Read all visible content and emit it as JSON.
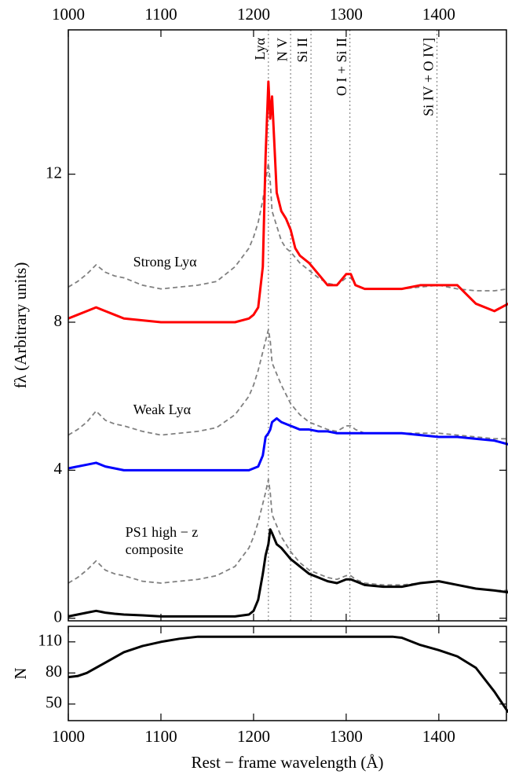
{
  "chart_data": [
    {
      "type": "line",
      "ylabel": "fλ (Arbitrary units)",
      "xlim": [
        1000,
        1473
      ],
      "ylim": [
        -0.07,
        15.9
      ],
      "xticks": [
        1000,
        1100,
        1200,
        1300,
        1400
      ],
      "yticks": [
        0,
        4,
        8,
        12
      ],
      "xtick_position": "top",
      "x": [
        1000,
        1010,
        1020,
        1030,
        1040,
        1050,
        1060,
        1080,
        1100,
        1120,
        1140,
        1160,
        1180,
        1195,
        1200,
        1205,
        1210,
        1213,
        1216,
        1218,
        1220,
        1225,
        1230,
        1235,
        1240,
        1245,
        1250,
        1260,
        1270,
        1280,
        1290,
        1300,
        1305,
        1310,
        1320,
        1340,
        1360,
        1380,
        1400,
        1420,
        1440,
        1460,
        1475
      ],
      "series": [
        {
          "color": "#808080",
          "dash": true,
          "values": [
            8.95,
            9.1,
            9.3,
            9.55,
            9.35,
            9.25,
            9.2,
            9.0,
            8.9,
            8.95,
            9.0,
            9.1,
            9.5,
            10.0,
            10.3,
            10.7,
            11.3,
            11.8,
            12.3,
            11.8,
            11.0,
            10.6,
            10.2,
            10.0,
            9.9,
            9.75,
            9.6,
            9.4,
            9.2,
            9.05,
            9.0,
            9.2,
            9.2,
            9.0,
            8.9,
            8.9,
            8.9,
            8.95,
            9.0,
            8.9,
            8.85,
            8.85,
            8.9
          ]
        },
        {
          "name": "Strong Lyα",
          "color": "#ff0000",
          "values": [
            8.1,
            8.2,
            8.3,
            8.4,
            8.3,
            8.2,
            8.1,
            8.05,
            8.0,
            8.0,
            8.0,
            8.0,
            8.0,
            8.1,
            8.2,
            8.4,
            9.5,
            12.5,
            14.5,
            13.5,
            14.1,
            11.5,
            11.0,
            10.8,
            10.5,
            10.0,
            9.8,
            9.6,
            9.3,
            9.0,
            9.0,
            9.3,
            9.3,
            9.0,
            8.9,
            8.9,
            8.9,
            9.0,
            9.0,
            9.0,
            8.5,
            8.3,
            8.5
          ]
        },
        {
          "color": "#808080",
          "dash": true,
          "values": [
            4.95,
            5.1,
            5.3,
            5.6,
            5.35,
            5.25,
            5.2,
            5.05,
            4.95,
            5.0,
            5.05,
            5.15,
            5.5,
            6.0,
            6.3,
            6.7,
            7.2,
            7.5,
            7.8,
            7.5,
            6.9,
            6.6,
            6.3,
            6.05,
            5.8,
            5.65,
            5.5,
            5.3,
            5.2,
            5.1,
            5.05,
            5.2,
            5.2,
            5.1,
            5.0,
            5.0,
            5.0,
            5.0,
            5.0,
            4.95,
            4.9,
            4.85,
            4.85
          ]
        },
        {
          "name": "Weak Lyα",
          "color": "#0000ff",
          "values": [
            4.05,
            4.1,
            4.15,
            4.2,
            4.1,
            4.05,
            4.0,
            4.0,
            4.0,
            4.0,
            4.0,
            4.0,
            4.0,
            4.0,
            4.05,
            4.1,
            4.4,
            4.9,
            5.0,
            5.1,
            5.3,
            5.4,
            5.3,
            5.25,
            5.2,
            5.15,
            5.1,
            5.1,
            5.05,
            5.05,
            5.0,
            5.0,
            5.0,
            5.0,
            5.0,
            5.0,
            5.0,
            4.95,
            4.9,
            4.9,
            4.85,
            4.8,
            4.7
          ]
        },
        {
          "color": "#808080",
          "dash": true,
          "values": [
            0.95,
            1.1,
            1.3,
            1.55,
            1.3,
            1.2,
            1.15,
            1.0,
            0.95,
            1.0,
            1.05,
            1.15,
            1.4,
            1.9,
            2.2,
            2.6,
            3.1,
            3.4,
            3.75,
            3.4,
            2.8,
            2.5,
            2.2,
            2.0,
            1.8,
            1.65,
            1.5,
            1.3,
            1.2,
            1.1,
            1.05,
            1.15,
            1.15,
            1.05,
            0.95,
            0.9,
            0.9,
            0.95,
            1.0,
            0.9,
            0.8,
            0.75,
            0.75
          ]
        },
        {
          "name": "PS1 high − z composite",
          "color": "#000000",
          "values": [
            0.05,
            0.1,
            0.15,
            0.2,
            0.15,
            0.12,
            0.1,
            0.08,
            0.05,
            0.05,
            0.05,
            0.05,
            0.05,
            0.1,
            0.2,
            0.5,
            1.2,
            1.7,
            2.0,
            2.4,
            2.3,
            2.0,
            1.9,
            1.75,
            1.6,
            1.5,
            1.4,
            1.2,
            1.1,
            1.0,
            0.95,
            1.05,
            1.05,
            1.0,
            0.9,
            0.85,
            0.85,
            0.95,
            1.0,
            0.9,
            0.8,
            0.75,
            0.7
          ]
        }
      ],
      "lines": [
        {
          "label": "Lyα",
          "x": 1216
        },
        {
          "label": "N V",
          "x": 1240
        },
        {
          "label": "Si II",
          "x": 1262
        },
        {
          "label": "O I + Si II",
          "x": 1304
        },
        {
          "label": "Si IV + O IV]",
          "x": 1398
        }
      ]
    },
    {
      "type": "line",
      "ylabel": "N",
      "xlabel": "Rest − frame wavelength (Å)",
      "xlim": [
        1000,
        1473
      ],
      "ylim": [
        34,
        125
      ],
      "xticks": [
        1000,
        1100,
        1200,
        1300,
        1400
      ],
      "yticks": [
        50,
        80,
        110
      ],
      "xtick_position": "bottom",
      "x": [
        1000,
        1010,
        1020,
        1040,
        1060,
        1080,
        1100,
        1120,
        1140,
        1200,
        1300,
        1350,
        1360,
        1380,
        1400,
        1420,
        1440,
        1460,
        1475
      ],
      "series": [
        {
          "color": "#000000",
          "values": [
            76,
            77,
            80,
            90,
            100,
            106,
            110,
            113,
            115,
            115,
            115,
            115,
            114,
            107,
            102,
            96,
            85,
            62,
            42
          ]
        }
      ]
    }
  ]
}
